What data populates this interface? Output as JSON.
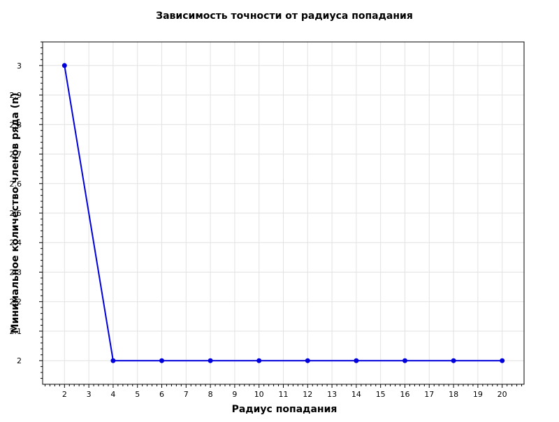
{
  "chart_data": {
    "type": "line",
    "title": "Зависимость точности от радиуса попадания",
    "xlabel": "Радиус попадания",
    "ylabel": "Минимальное количество членов ряда (n)",
    "x": [
      2,
      4,
      6,
      8,
      10,
      12,
      14,
      16,
      18,
      20
    ],
    "series": [
      {
        "values": [
          3,
          2,
          2,
          2,
          2,
          2,
          2,
          2,
          2,
          2
        ],
        "color": "#0000dd"
      }
    ],
    "xlim": [
      1.1,
      20.9
    ],
    "ylim": [
      1.92,
      3.08
    ],
    "x_ticks": [
      2,
      3,
      4,
      5,
      6,
      7,
      8,
      9,
      10,
      11,
      12,
      13,
      14,
      15,
      16,
      17,
      18,
      19,
      20
    ],
    "y_ticks": [
      2,
      2.1,
      2.2,
      2.3,
      2.4,
      2.5,
      2.6,
      2.7,
      2.8,
      2.9,
      3
    ],
    "grid": true,
    "legend": "none",
    "colors": {
      "series": "#0000dd",
      "grid": "#e2e2e2",
      "frame": "#000000"
    }
  }
}
